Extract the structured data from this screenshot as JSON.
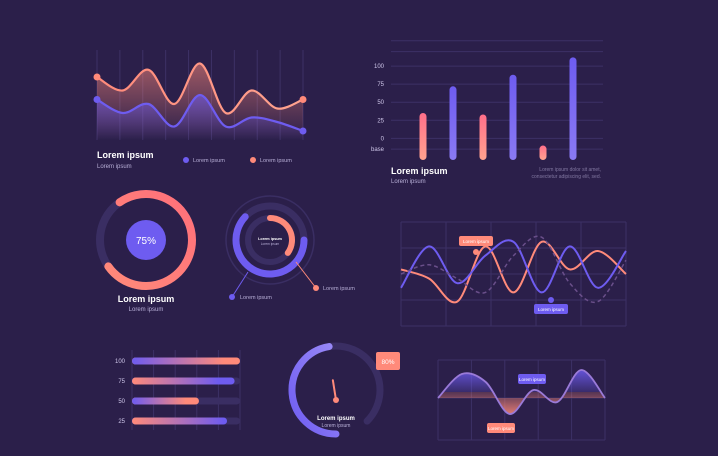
{
  "colors": {
    "background": "#2b1f4a",
    "grid": "#3d3166",
    "purple": "#6e5cf0",
    "coral": "#ff8a7a",
    "coral_light": "#ffa38f",
    "ring_track": "#3a2e63",
    "text_main": "#ffffff",
    "text_sub": "#b9b0d8"
  },
  "wave_panel": {
    "title": "Lorem ipsum",
    "subtitle": "Lorem ipsum",
    "legend": [
      {
        "label": "Lorem ipsum",
        "color": "#6e5cf0"
      },
      {
        "label": "Lorem ipsum",
        "color": "#ff8a7a"
      }
    ]
  },
  "bar_panel": {
    "title": "Lorem ipsum",
    "subtitle": "Lorem ipsum",
    "note_line1": "Lorem ipsum dolor sit amet,",
    "note_line2": "consectetur adipiscing elit, sed."
  },
  "donut_panel": {
    "center_label": "75%",
    "title": "Lorem ipsum",
    "subtitle": "Lorem ipsum"
  },
  "nested_rings": {
    "center_title": "Lorem ipsum",
    "center_sub": "Lorem ipsum",
    "callouts": [
      {
        "label": "Lorem ipsum"
      },
      {
        "label": "Lorem ipsum"
      }
    ]
  },
  "line_panel": {
    "tooltips": [
      "Lorem ipsum",
      "Lorem ipsum"
    ]
  },
  "hbar_panel": {
    "ticks": [
      "100",
      "75",
      "50",
      "25"
    ]
  },
  "gauge": {
    "badge": "80%",
    "title": "Lorem ipsum",
    "subtitle": "Lorem ipsum"
  },
  "area_panel": {
    "tooltips": [
      "Lorem ipsum",
      "Lorem ipsum"
    ]
  },
  "chart_data": [
    {
      "type": "area",
      "series": [
        {
          "values": [
            70,
            55,
            78,
            40,
            85,
            30,
            55,
            35,
            45
          ]
        },
        {
          "values": [
            45,
            30,
            40,
            15,
            50,
            15,
            25,
            20,
            10
          ]
        }
      ]
    },
    {
      "type": "bar",
      "categories": [
        "",
        "",
        "",
        "",
        "",
        ""
      ],
      "tick_labels": [
        "base",
        "0",
        "25",
        "50",
        "75",
        "100"
      ],
      "values": [
        35,
        72,
        33,
        88,
        -10,
        112
      ],
      "ylim": [
        -30,
        125
      ]
    },
    {
      "type": "pie",
      "values": [
        75,
        25
      ],
      "label": "75%"
    },
    {
      "type": "pie",
      "rings": [
        {
          "name": "outer",
          "value": 62
        },
        {
          "name": "inner",
          "value": 35
        }
      ]
    },
    {
      "type": "line",
      "series": [
        {
          "values": [
            55,
            45,
            20,
            80,
            30,
            85,
            55,
            75,
            50
          ]
        },
        {
          "values": [
            35,
            80,
            40,
            70,
            85,
            30,
            80,
            35,
            75
          ]
        },
        {
          "values": [
            50,
            60,
            45,
            30,
            70,
            90,
            40,
            20,
            65
          ]
        }
      ]
    },
    {
      "type": "bar",
      "categories": [
        "100",
        "75",
        "50",
        "25"
      ],
      "series": [
        {
          "values": [
            85,
            80,
            50,
            85
          ]
        },
        {
          "values": [
            100,
            95,
            62,
            88
          ]
        }
      ],
      "xlim": [
        0,
        100
      ]
    },
    {
      "type": "pie",
      "values": [
        80,
        20
      ],
      "label": "80%"
    },
    {
      "type": "area",
      "series": [
        {
          "values": [
            0,
            60,
            40,
            -40,
            20,
            -10,
            70,
            0
          ]
        }
      ]
    }
  ]
}
